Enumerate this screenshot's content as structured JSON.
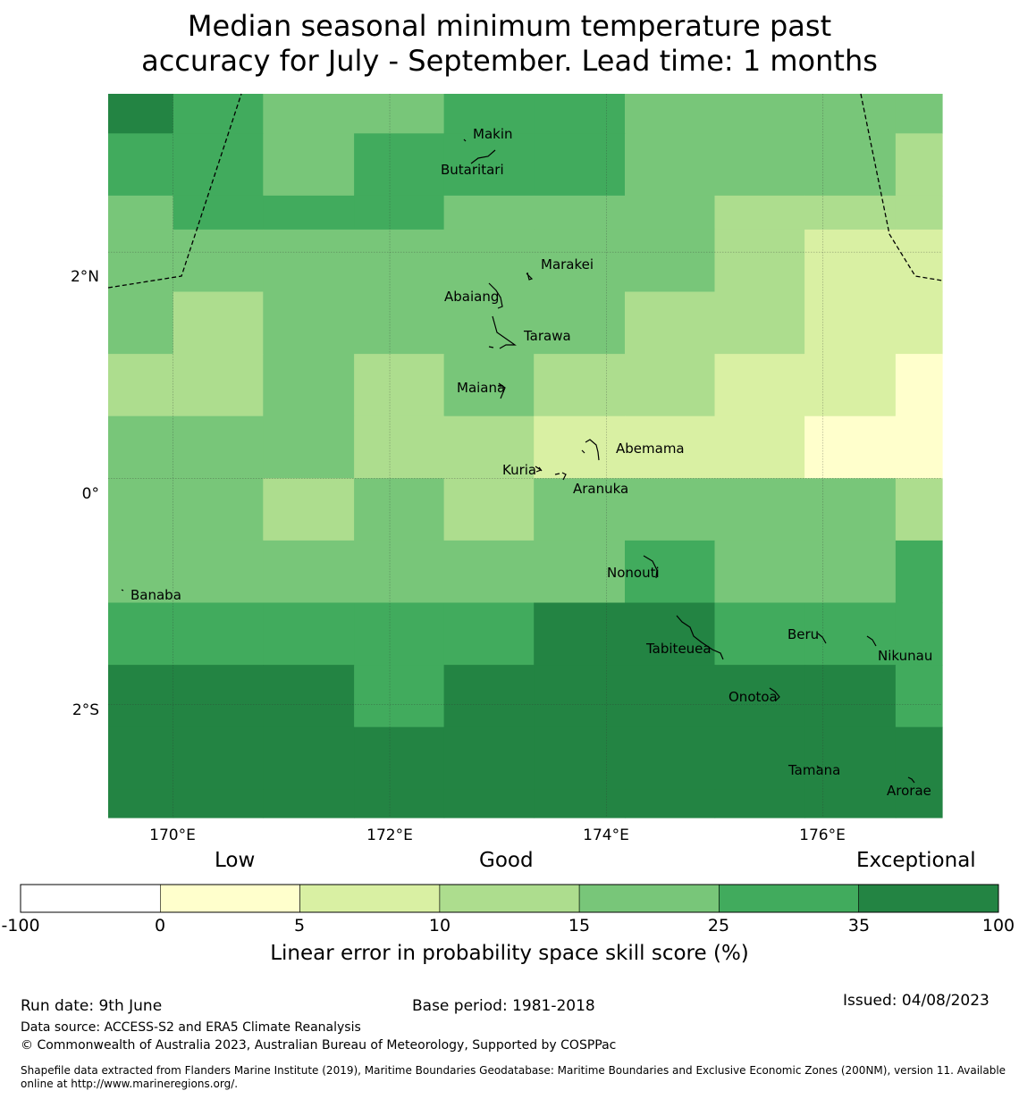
{
  "title": {
    "line1": "Median seasonal minimum temperature past",
    "line2": "accuracy for July - September. Lead time: 1 months"
  },
  "map": {
    "lon_range": [
      169.4,
      177.1
    ],
    "lat_range": [
      -3.0,
      3.4
    ],
    "lon_ticks": [
      {
        "value": 170,
        "label": "170°E"
      },
      {
        "value": 172,
        "label": "172°E"
      },
      {
        "value": 174,
        "label": "174°E"
      },
      {
        "value": 176,
        "label": "176°E"
      }
    ],
    "lat_ticks": [
      {
        "value": 2,
        "label": "2°N"
      },
      {
        "value": 0,
        "label": "0°"
      },
      {
        "value": -2,
        "label": "2°S"
      }
    ],
    "grid_cells": {
      "col_lon_edges": [
        169.4,
        170.0,
        170.83,
        171.67,
        172.5,
        173.33,
        174.17,
        175.0,
        175.83,
        176.67,
        177.1
      ],
      "row_lat_edges": [
        3.4,
        3.05,
        2.5,
        2.2,
        1.65,
        1.1,
        0.55,
        0.0,
        -0.55,
        -1.1,
        -1.65,
        -2.2,
        -2.75,
        -3.0
      ],
      "skill_class_rows": [
        [
          6,
          5,
          4,
          4,
          5,
          5,
          4,
          4,
          4,
          4
        ],
        [
          5,
          5,
          4,
          5,
          5,
          5,
          4,
          4,
          4,
          3
        ],
        [
          4,
          5,
          5,
          5,
          4,
          4,
          4,
          3,
          3,
          3
        ],
        [
          4,
          4,
          4,
          4,
          4,
          4,
          4,
          3,
          2,
          2
        ],
        [
          4,
          3,
          4,
          4,
          4,
          4,
          3,
          3,
          2,
          2
        ],
        [
          3,
          3,
          4,
          3,
          4,
          3,
          3,
          2,
          2,
          1
        ],
        [
          4,
          4,
          4,
          3,
          3,
          2,
          2,
          2,
          1,
          1
        ],
        [
          4,
          4,
          3,
          4,
          3,
          4,
          4,
          4,
          4,
          3
        ],
        [
          4,
          4,
          4,
          4,
          4,
          4,
          5,
          4,
          4,
          5
        ],
        [
          5,
          5,
          5,
          5,
          5,
          6,
          6,
          5,
          5,
          5
        ],
        [
          6,
          6,
          6,
          5,
          6,
          6,
          6,
          6,
          6,
          5
        ],
        [
          6,
          6,
          6,
          6,
          6,
          6,
          6,
          6,
          6,
          6
        ],
        [
          6,
          6,
          6,
          6,
          6,
          6,
          6,
          6,
          6,
          6
        ]
      ]
    },
    "islands": [
      {
        "name": "Makin",
        "lon": 172.95,
        "lat": 3.1
      },
      {
        "name": "Butaritari",
        "lon": 172.8,
        "lat": 2.9
      },
      {
        "name": "Marakei",
        "lon": 173.3,
        "lat": 2.0
      },
      {
        "name": "Abaiang",
        "lon": 173.0,
        "lat": 1.8
      },
      {
        "name": "Tarawa",
        "lon": 173.1,
        "lat": 1.4
      },
      {
        "name": "Maiana",
        "lon": 173.0,
        "lat": 0.95
      },
      {
        "name": "Abemama",
        "lon": 173.9,
        "lat": 0.4
      },
      {
        "name": "Kuria",
        "lon": 173.4,
        "lat": 0.22
      },
      {
        "name": "Aranuka",
        "lon": 173.6,
        "lat": 0.15
      },
      {
        "name": "Nonouti",
        "lon": 174.4,
        "lat": -0.65
      },
      {
        "name": "Banaba",
        "lon": 169.5,
        "lat": -0.87
      },
      {
        "name": "Tabiteuea",
        "lon": 174.8,
        "lat": -1.3
      },
      {
        "name": "Beru",
        "lon": 176.0,
        "lat": -1.33
      },
      {
        "name": "Nikunau",
        "lon": 176.45,
        "lat": -1.37
      },
      {
        "name": "Onotoa",
        "lon": 175.55,
        "lat": -1.83
      },
      {
        "name": "Tamana",
        "lon": 175.98,
        "lat": -2.5
      },
      {
        "name": "Arorae",
        "lon": 176.82,
        "lat": -2.64
      }
    ]
  },
  "legend": {
    "levels": [
      "Low",
      "Good",
      "Exceptional"
    ],
    "class_colors": [
      "#ffffff",
      "#ffffcc",
      "#d9f0a3",
      "#addd8e",
      "#78c679",
      "#41ab5d",
      "#238443"
    ],
    "ticks": [
      "-100",
      "0",
      "5",
      "10",
      "15",
      "25",
      "35",
      "100"
    ],
    "label": "Linear error in probability space skill score (%)"
  },
  "footer": {
    "run_date": "Run date: 9th June",
    "base_period": "Base period: 1981-2018",
    "issued": "Issued: 04/08/2023",
    "data_source": "Data source: ACCESS-S2 and ERA5 Climate Reanalysis",
    "copyright": "© Commonwealth of Australia 2023, Australian Bureau of Meteorology, Supported by COSPPac",
    "shapefile": "Shapefile data extracted from Flanders Marine Institute (2019), Maritime Boundaries Geodatabase: Maritime Boundaries and Exclusive Economic Zones (200NM), version 11. Available online at http://www.marineregions.org/."
  }
}
